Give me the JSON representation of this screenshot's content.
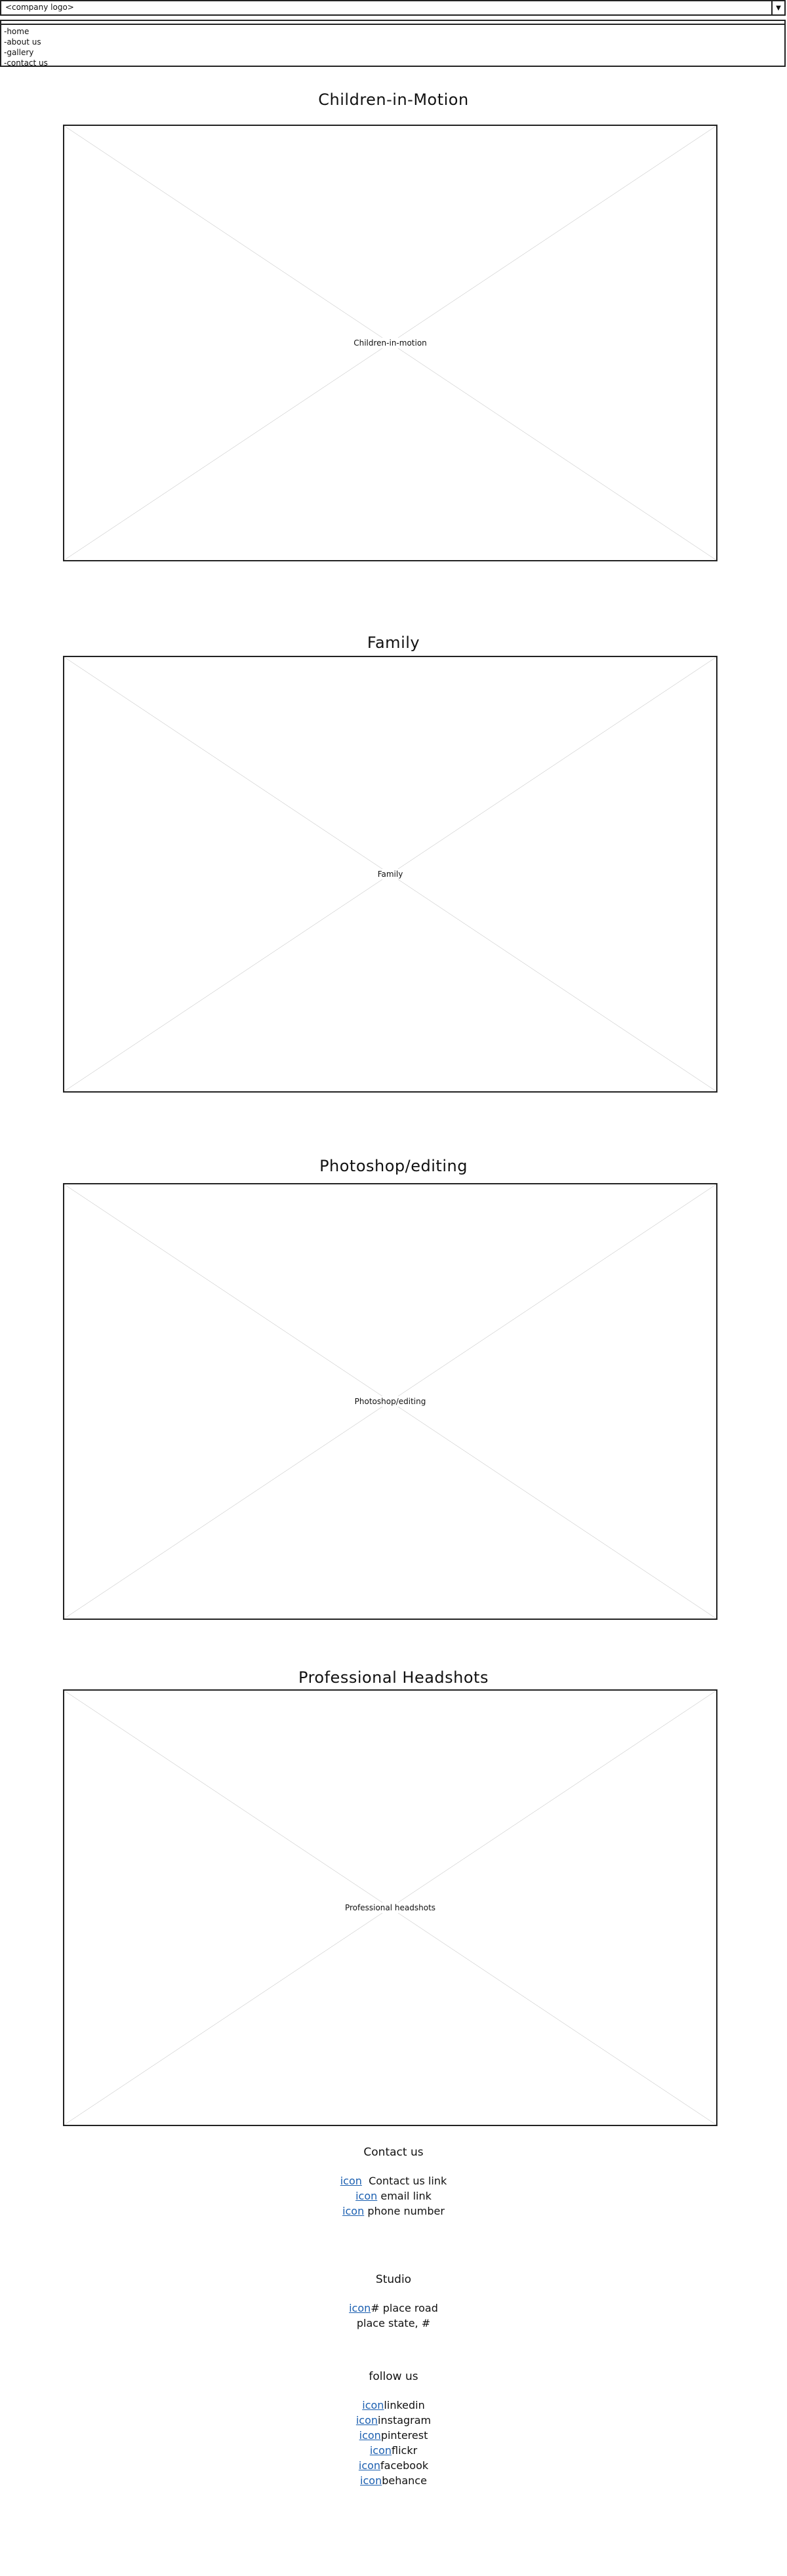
{
  "header": {
    "logo_text": "<company logo>",
    "dropdown_icon": "caret-down-icon"
  },
  "nav": {
    "items": [
      "-home",
      "-about us",
      "-gallery",
      "-contact us"
    ]
  },
  "sections": [
    {
      "title": "Children-in-Motion",
      "image_label": "Children-in-motion"
    },
    {
      "title": "Family",
      "image_label": "Family"
    },
    {
      "title": "Photoshop/editing",
      "image_label": "Photoshop/editing"
    },
    {
      "title": "Professional Headshots",
      "image_label": "Professional headshots"
    }
  ],
  "contact": {
    "heading": "Contact us",
    "rows": [
      {
        "icon": "icon",
        "text": "  Contact us link"
      },
      {
        "icon": "icon",
        "text": " email link"
      },
      {
        "icon": "icon",
        "text": " phone number"
      }
    ]
  },
  "studio": {
    "heading": "Studio",
    "icon": "icon",
    "line1": "# place road",
    "line2": "place state, #"
  },
  "follow": {
    "heading": "follow us",
    "rows": [
      {
        "icon": "icon",
        "text": "linkedin"
      },
      {
        "icon": "icon",
        "text": "instagram"
      },
      {
        "icon": "icon",
        "text": "pinterest"
      },
      {
        "icon": "icon",
        "text": "flickr"
      },
      {
        "icon": "icon",
        "text": "facebook"
      },
      {
        "icon": "icon",
        "text": "behance"
      }
    ]
  },
  "colors": {
    "link": "#1b5fb0",
    "border": "#222222"
  }
}
